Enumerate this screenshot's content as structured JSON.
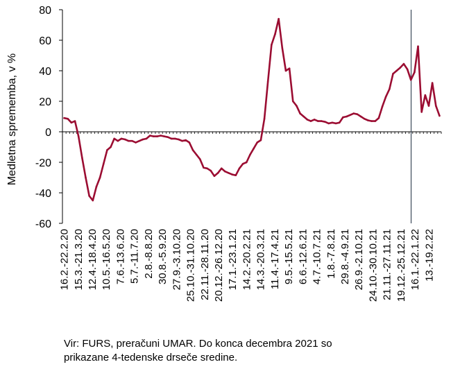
{
  "chart_data": {
    "type": "line",
    "title": "",
    "ylabel": "Medletna sprememba, v %",
    "xlabel": "",
    "ylim": [
      -60,
      80
    ],
    "yticks": [
      -60,
      -40,
      -20,
      0,
      20,
      40,
      60,
      80
    ],
    "grid": false,
    "line_color": "#9b0d32",
    "divider_color": "#3c4a5a",
    "divider_after_label": "19.12.-25.12.21",
    "x_tick_labels": [
      "16.2.-22.2.20",
      "15.3.-21.3.20",
      "12.4.-18.4.20",
      "10.5.-16.5.20",
      "7.6.-13.6.20",
      "5.7.-11.7.20",
      "2.8.-8.8.20",
      "30.8.-5.9.20",
      "27.9.-3.10.20",
      "25.10.-31.10.20",
      "22.11.-28.11.20",
      "20.12.-26.12.20",
      "17.1.-23.1.21",
      "14.2.-20.2.21",
      "14.3.-20.3.21",
      "11.4.-17.4.21",
      "9.5.-15.5.21",
      "6.6.-12.6.21",
      "4.7.-10.7.21",
      "1.8.-7.8.21",
      "29.8.-4.9.21",
      "26.9.-2.10.21",
      "24.10.-30.10.21",
      "21.11.-27.11.21",
      "19.12.-25.12.21",
      "16.1.-22.1.22",
      "13.-19.2.22"
    ],
    "series": [
      {
        "values": [
          9,
          8.5,
          6,
          7,
          -3,
          -17,
          -30,
          -42,
          -45,
          -36,
          -30,
          -21,
          -12,
          -10,
          -4.5,
          -6,
          -4.5,
          -5,
          -6,
          -6,
          -7,
          -6,
          -5,
          -4.5,
          -2.5,
          -3,
          -3,
          -2.5,
          -3,
          -3.5,
          -4.5,
          -4.5,
          -5,
          -6,
          -5.5,
          -7,
          -12,
          -15,
          -18,
          -23.5,
          -24,
          -25.5,
          -29,
          -27,
          -24,
          -26,
          -27,
          -28,
          -28.5,
          -24,
          -21,
          -20,
          -15,
          -11,
          -7,
          -5.5,
          8.5,
          33,
          57,
          64,
          74,
          55,
          40,
          41.5,
          20,
          17,
          12,
          10,
          8,
          7,
          8,
          7,
          7,
          6.5,
          5.5,
          6,
          5.5,
          6,
          9.5,
          10,
          11,
          12,
          11.5,
          10,
          8.5,
          7.5,
          7,
          7,
          9,
          16.5,
          23,
          28,
          38,
          40,
          42,
          44.5,
          41,
          34,
          39,
          56,
          13,
          24,
          17,
          32,
          17,
          10.5
        ]
      }
    ]
  },
  "source_text": "Vir: FURS, preračuni UMAR. Do konca decembra 2021 so\nprikazane 4-tedenske drseče sredine."
}
